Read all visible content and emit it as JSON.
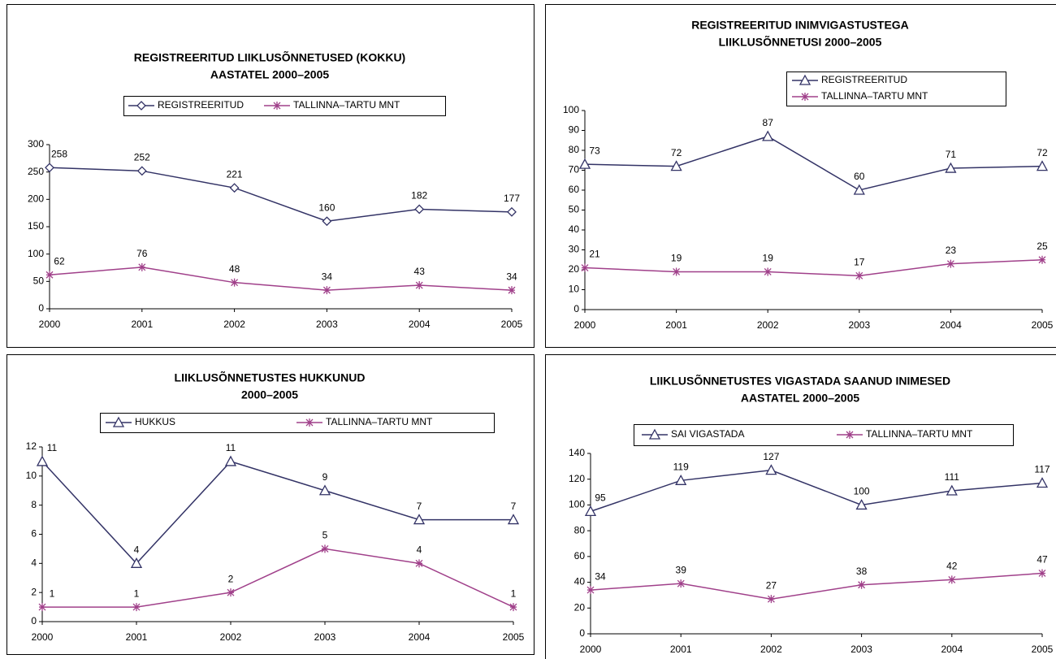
{
  "chart_data": [
    {
      "type": "line",
      "title": [
        "REGISTREERITUD LIIKLUSÕNNETUSED (KOKKU)",
        "AASTATEL 2000–2005"
      ],
      "categories": [
        "2000",
        "2001",
        "2002",
        "2003",
        "2004",
        "2005"
      ],
      "ylim": [
        0,
        300
      ],
      "yticks": [
        0,
        50,
        100,
        150,
        200,
        250,
        300
      ],
      "legend": "top",
      "series": [
        {
          "name": "REGISTREERITUD",
          "color": "#333366",
          "marker": "diamond",
          "values": [
            258,
            252,
            221,
            160,
            182,
            177
          ]
        },
        {
          "name": "TALLINNA–TARTU MNT",
          "color": "#a0408a",
          "marker": "asterisk",
          "values": [
            62,
            76,
            48,
            34,
            43,
            34
          ]
        }
      ]
    },
    {
      "type": "line",
      "title": [
        "REGISTREERITUD INIMVIGASTUSTEGA",
        "LIIKLUSÕNNETUSI 2000–2005"
      ],
      "categories": [
        "2000",
        "2001",
        "2002",
        "2003",
        "2004",
        "2005"
      ],
      "ylim": [
        0,
        100
      ],
      "yticks": [
        0,
        10,
        20,
        30,
        40,
        50,
        60,
        70,
        80,
        90,
        100
      ],
      "legend": "top-right",
      "series": [
        {
          "name": "REGISTREERITUD",
          "color": "#333366",
          "marker": "triangle",
          "values": [
            73,
            72,
            87,
            60,
            71,
            72
          ]
        },
        {
          "name": "TALLINNA–TARTU MNT",
          "color": "#a0408a",
          "marker": "asterisk",
          "values": [
            21,
            19,
            19,
            17,
            23,
            25
          ]
        }
      ]
    },
    {
      "type": "line",
      "title": [
        "LIIKLUSÕNNETUSTES HUKKUNUD",
        "2000–2005"
      ],
      "categories": [
        "2000",
        "2001",
        "2002",
        "2003",
        "2004",
        "2005"
      ],
      "ylim": [
        0,
        12
      ],
      "yticks": [
        0,
        2,
        4,
        6,
        8,
        10,
        12
      ],
      "legend": "top",
      "series": [
        {
          "name": "HUKKUS",
          "color": "#333366",
          "marker": "triangle",
          "values": [
            11,
            4,
            11,
            9,
            7,
            7
          ]
        },
        {
          "name": "TALLINNA–TARTU MNT",
          "color": "#a0408a",
          "marker": "asterisk",
          "values": [
            1,
            1,
            2,
            5,
            4,
            1
          ]
        }
      ]
    },
    {
      "type": "line",
      "title": [
        "LIIKLUSÕNNETUSTES VIGASTADA SAANUD INIMESED",
        "AASTATEL 2000–2005"
      ],
      "categories": [
        "2000",
        "2001",
        "2002",
        "2003",
        "2004",
        "2005"
      ],
      "ylim": [
        0,
        140
      ],
      "yticks": [
        0,
        20,
        40,
        60,
        80,
        100,
        120,
        140
      ],
      "legend": "top",
      "series": [
        {
          "name": "SAI VIGASTADA",
          "color": "#333366",
          "marker": "triangle",
          "values": [
            95,
            119,
            127,
            100,
            111,
            117
          ]
        },
        {
          "name": "TALLINNA–TARTU MNT",
          "color": "#a0408a",
          "marker": "asterisk",
          "values": [
            34,
            39,
            27,
            38,
            42,
            47
          ]
        }
      ]
    }
  ]
}
